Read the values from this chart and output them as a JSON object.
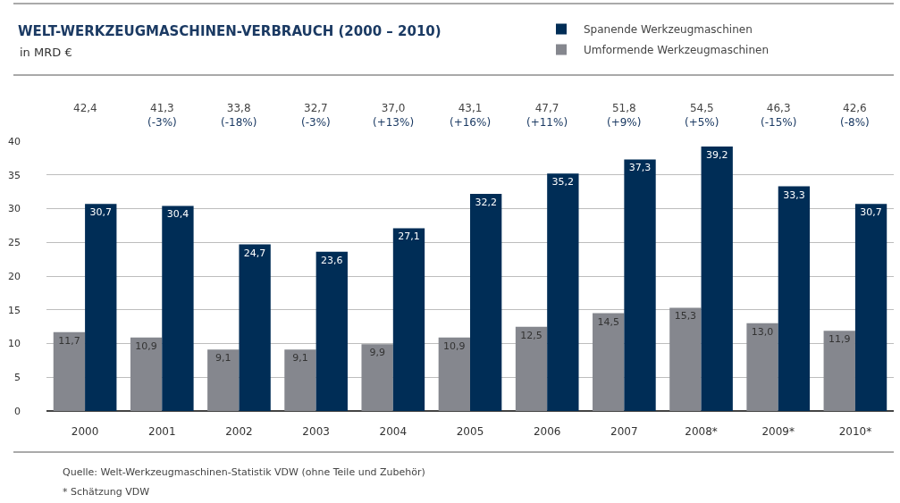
{
  "chart_data": {
    "type": "bar",
    "title": "WELT-WERKZEUGMASCHINEN-VERBRAUCH (2000 – 2010)",
    "subtitle": "in MRD €",
    "categories": [
      "2000",
      "2001",
      "2002",
      "2003",
      "2004",
      "2005",
      "2006",
      "2007",
      "2008*",
      "2009*",
      "2010*"
    ],
    "series": [
      {
        "name": "Umformende Werkzeugmaschinen",
        "color": "#85878e",
        "values": [
          11.7,
          10.9,
          9.1,
          9.1,
          9.9,
          10.9,
          12.5,
          14.5,
          15.3,
          13.0,
          11.9
        ],
        "value_labels": [
          "11,7",
          "10,9",
          "9,1",
          "9,1",
          "9,9",
          "10,9",
          "12,5",
          "14,5",
          "15,3",
          "13,0",
          "11,9"
        ]
      },
      {
        "name": "Spanende Werkzeugmaschinen",
        "color": "#002d56",
        "values": [
          30.7,
          30.4,
          24.7,
          23.6,
          27.1,
          32.2,
          35.2,
          37.3,
          39.2,
          33.3,
          30.7
        ],
        "value_labels": [
          "30,7",
          "30,4",
          "24,7",
          "23,6",
          "27,1",
          "32,2",
          "35,2",
          "37,3",
          "39,2",
          "33,3",
          "30,7"
        ]
      }
    ],
    "ylim": [
      0,
      40
    ],
    "yticks": [
      0,
      5,
      10,
      15,
      20,
      25,
      30,
      35,
      40
    ],
    "grid": "y",
    "legend": "top right",
    "annotations": [
      "42,4",
      "41,3\n(-3%)",
      "33,8\n(-18%)",
      "32,7\n(-3%)",
      "37,0\n(+13%)",
      "43,1\n(+16%)",
      "47,7\n(+11%)",
      "51,8\n(+9%)",
      "54,5\n(+5%)",
      "46,3\n(-15%)",
      "42,6\n(-8%)",
      "Quelle: Welt-Werkzeugmaschinen-Statistik VDW (ohne Teile und Zubehör)",
      "* Schätzung VDW"
    ]
  }
}
